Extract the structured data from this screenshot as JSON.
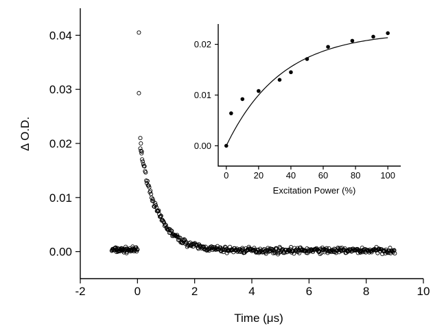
{
  "chart_data": [
    {
      "type": "scatter",
      "title": "",
      "xlabel": "Time (μs)",
      "ylabel": "Δ O.D.",
      "xlim": [
        -2,
        10
      ],
      "ylim": [
        -0.005,
        0.045
      ],
      "xticks": [
        -2,
        0,
        2,
        4,
        6,
        8,
        10
      ],
      "xtick_labels": [
        "-2",
        "0",
        "2",
        "4",
        "6",
        "8",
        "10"
      ],
      "yticks": [
        0.0,
        0.01,
        0.02,
        0.03,
        0.04
      ],
      "ytick_labels": [
        "0.00",
        "0.01",
        "0.02",
        "0.03",
        "0.04"
      ],
      "grid": false,
      "marker": "open-circle",
      "series": [
        {
          "baseline_range_x": [
            -0.9,
            0.0
          ],
          "baseline_y": 0.0003,
          "baseline_noise": 0.0006,
          "peak_points": [
            [
              0.05,
              0.0405
            ],
            [
              0.05,
              0.0293
            ],
            [
              0.1,
              0.021
            ],
            [
              0.12,
              0.02
            ],
            [
              0.15,
              0.0185
            ]
          ],
          "decay_model": {
            "form": "y = A*exp(-(t - t0)/tau) + c",
            "A": 0.019,
            "t0": 0.1,
            "tau": 0.62,
            "c": 0.0002,
            "range_x": [
              0.1,
              9.0
            ],
            "noise": 0.0007
          }
        }
      ]
    },
    {
      "type": "scatter",
      "title": "",
      "xlabel": "Excitation Power (%)",
      "ylabel": "",
      "xlim": [
        -5,
        108
      ],
      "ylim": [
        -0.004,
        0.024
      ],
      "xticks": [
        0,
        20,
        40,
        60,
        80,
        100
      ],
      "xtick_labels": [
        "0",
        "20",
        "40",
        "60",
        "80",
        "100"
      ],
      "yticks": [
        0.0,
        0.01,
        0.02
      ],
      "ytick_labels": [
        "0.00",
        "0.01",
        "0.02"
      ],
      "grid": false,
      "marker": "filled-circle",
      "x": [
        0,
        3,
        10,
        20,
        33,
        40,
        50,
        63,
        78,
        91,
        100
      ],
      "y": [
        0.0,
        0.0064,
        0.0092,
        0.0108,
        0.013,
        0.0145,
        0.0171,
        0.0195,
        0.0207,
        0.0215,
        0.0222
      ],
      "fit": {
        "form": "y = a*(1 - exp(-x/b))",
        "a": 0.0225,
        "b": 34
      }
    }
  ]
}
